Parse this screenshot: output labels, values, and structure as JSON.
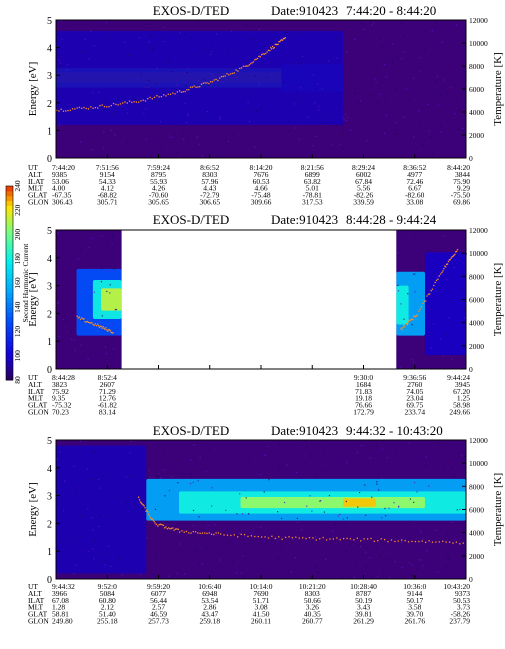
{
  "chart_data": [
    {
      "type": "heatmap",
      "title": "EXOS-D/TED",
      "date_label": "Date:910423",
      "time_range": "7:44:20 - 8:44:20",
      "ylabel": "Energy [eV]",
      "ylim": [
        0,
        5
      ],
      "y_ticks": [
        "0",
        "1",
        "2",
        "3",
        "4",
        "5"
      ],
      "ylabel_right": "Temperature [K]",
      "y2lim": [
        0,
        12000
      ],
      "y2_ticks": [
        "0",
        "2000",
        "4000",
        "6000",
        "8000",
        "10000",
        "12000"
      ],
      "gap": null,
      "bands": [
        {
          "t0": 0.0,
          "t1": 0.62,
          "y0": 2.55,
          "y1": 3.25,
          "intensity": 0.62
        },
        {
          "t0": 0.0,
          "t1": 0.55,
          "y0": 2.72,
          "y1": 3.1,
          "intensity": 0.78
        },
        {
          "t0": 0.55,
          "t1": 0.7,
          "y0": 2.4,
          "y1": 3.4,
          "intensity": 0.25
        },
        {
          "t0": 0.0,
          "t1": 0.7,
          "y0": 1.2,
          "y1": 4.6,
          "intensity": 0.08
        }
      ],
      "temperature_trace": [
        [
          0.0,
          4200
        ],
        [
          0.1,
          4500
        ],
        [
          0.2,
          5000
        ],
        [
          0.3,
          5800
        ],
        [
          0.38,
          6700
        ],
        [
          0.46,
          8000
        ],
        [
          0.52,
          9500
        ],
        [
          0.56,
          10500
        ]
      ],
      "table": {
        "row_labels": [
          "UT",
          "ALT",
          "ILAT",
          "MLT",
          "GLAT",
          "GLON"
        ],
        "columns": [
          [
            "7:44:20",
            "9385",
            "53.06",
            "4.00",
            "-67.35",
            "306.43"
          ],
          [
            "7:51:56",
            "9154",
            "54.33",
            "4.12",
            "-68.82",
            "305.71"
          ],
          [
            "7:59:24",
            "8795",
            "55.93",
            "4.26",
            "-70.60",
            "305.65"
          ],
          [
            "8:6:52",
            "8303",
            "57.96",
            "4.43",
            "-72.79",
            "306.65"
          ],
          [
            "8:14:20",
            "7676",
            "60.53",
            "4.66",
            "-75.48",
            "309.66"
          ],
          [
            "8:21:56",
            "6899",
            "63.82",
            "5.01",
            "-78.81",
            "317.53"
          ],
          [
            "8:29:24",
            "6002",
            "67.84",
            "5.56",
            "-82.26",
            "339.59"
          ],
          [
            "8:36:52",
            "4977",
            "72.46",
            "6.67",
            "-82.60",
            "33.08"
          ],
          [
            "8:44:20",
            "3844",
            "75.90",
            "9.29",
            "-75.50",
            "69.86"
          ]
        ]
      }
    },
    {
      "type": "heatmap",
      "title": "EXOS-D/TED",
      "date_label": "Date:910423",
      "time_range": "8:44:28 - 9:44:24",
      "ylabel": "Energy [eV]",
      "ylim": [
        0,
        5
      ],
      "y_ticks": [
        "0",
        "1",
        "2",
        "3",
        "4",
        "5"
      ],
      "ylabel_right": "Temperature [K]",
      "y2lim": [
        0,
        12000
      ],
      "y2_ticks": [
        "0",
        "2000",
        "4000",
        "6000",
        "8000",
        "10000",
        "12000"
      ],
      "gap": [
        0.16,
        0.83
      ],
      "bands": [
        {
          "t0": 0.05,
          "t1": 0.16,
          "y0": 1.2,
          "y1": 3.6,
          "intensity": 0.3
        },
        {
          "t0": 0.09,
          "t1": 0.16,
          "y0": 1.8,
          "y1": 3.2,
          "intensity": 0.62
        },
        {
          "t0": 0.11,
          "t1": 0.16,
          "y0": 2.1,
          "y1": 2.9,
          "intensity": 0.82
        },
        {
          "t0": 0.83,
          "t1": 0.9,
          "y0": 1.2,
          "y1": 3.5,
          "intensity": 0.45
        },
        {
          "t0": 0.83,
          "t1": 0.86,
          "y0": 1.6,
          "y1": 3.0,
          "intensity": 0.62
        },
        {
          "t0": 0.9,
          "t1": 1.0,
          "y0": 0.5,
          "y1": 4.2,
          "intensity": 0.1
        }
      ],
      "temperature_trace": [
        [
          0.05,
          4500
        ],
        [
          0.1,
          3800
        ],
        [
          0.14,
          3200
        ],
        [
          0.84,
          3500
        ],
        [
          0.88,
          4800
        ],
        [
          0.94,
          8500
        ],
        [
          0.98,
          10500
        ]
      ],
      "table": {
        "row_labels": [
          "UT",
          "ALT",
          "ILAT",
          "MLT",
          "GLAT",
          "GLON"
        ],
        "columns": [
          [
            "8:44:28",
            "3823",
            "75.92",
            "9.35",
            "-75.32",
            "70.23"
          ],
          [
            "8:52:4",
            "2607",
            "71.29",
            "12.76",
            "-61.82",
            "83.14"
          ],
          null,
          null,
          null,
          null,
          [
            "9:30:0",
            "1684",
            "71.83",
            "19.18",
            "76.66",
            "172.79"
          ],
          [
            "9:36:56",
            "2760",
            "74.05",
            "23.04",
            "69.75",
            "233.74"
          ],
          [
            "9:44:24",
            "3945",
            "67.20",
            "1.25",
            "58.98",
            "249.66"
          ]
        ]
      },
      "colorbar": {
        "label": "Second Harmonic Current",
        "ticks": [
          "80",
          "100",
          "120",
          "140",
          "160",
          "180",
          "200",
          "220",
          "240"
        ],
        "range": [
          80,
          240
        ]
      }
    },
    {
      "type": "heatmap",
      "title": "EXOS-D/TED",
      "date_label": "Date:910423",
      "time_range": "9:44:32 - 10:43:20",
      "ylabel": "Energy [eV]",
      "ylim": [
        0,
        5
      ],
      "y_ticks": [
        "0",
        "1",
        "2",
        "3",
        "4",
        "5"
      ],
      "ylabel_right": "Temperature [K]",
      "y2lim": [
        0,
        12000
      ],
      "y2_ticks": [
        "0",
        "2000",
        "4000",
        "6000",
        "8000",
        "10000",
        "12000"
      ],
      "gap": null,
      "bands": [
        {
          "t0": 0.22,
          "t1": 1.0,
          "y0": 2.1,
          "y1": 3.6,
          "intensity": 0.45
        },
        {
          "t0": 0.3,
          "t1": 1.0,
          "y0": 2.35,
          "y1": 3.15,
          "intensity": 0.62
        },
        {
          "t0": 0.45,
          "t1": 0.9,
          "y0": 2.55,
          "y1": 2.95,
          "intensity": 0.78
        },
        {
          "t0": 0.7,
          "t1": 0.78,
          "y0": 2.6,
          "y1": 2.9,
          "intensity": 0.9
        },
        {
          "t0": 0.0,
          "t1": 0.22,
          "y0": 0.2,
          "y1": 4.8,
          "intensity": 0.08
        }
      ],
      "temperature_trace": [
        [
          0.2,
          7000
        ],
        [
          0.24,
          4800
        ],
        [
          0.3,
          4200
        ],
        [
          0.4,
          3900
        ],
        [
          0.55,
          3600
        ],
        [
          0.7,
          3500
        ],
        [
          0.85,
          3350
        ],
        [
          1.0,
          3200
        ]
      ],
      "table": {
        "row_labels": [
          "UT",
          "ALT",
          "ILAT",
          "MLT",
          "GLAT",
          "GLON"
        ],
        "columns": [
          [
            "9:44:32",
            "3966",
            "67.08",
            "1.28",
            "58.81",
            "249.80"
          ],
          [
            "9:52:0",
            "5084",
            "60.80",
            "2.12",
            "51.40",
            "255.18"
          ],
          [
            "9:59:20",
            "6077",
            "56.44",
            "2.57",
            "46.59",
            "257.73"
          ],
          [
            "10:6:40",
            "6948",
            "53.54",
            "2.86",
            "43.47",
            "259.18"
          ],
          [
            "10:14:0",
            "7690",
            "51.71",
            "3.08",
            "41.50",
            "260.11"
          ],
          [
            "10:21:20",
            "8303",
            "50.66",
            "3.26",
            "40.35",
            "260.77"
          ],
          [
            "10:28:40",
            "8787",
            "50.19",
            "3.43",
            "39.81",
            "261.29"
          ],
          [
            "10:36:0",
            "9144",
            "50.17",
            "3.58",
            "39.70",
            "261.76"
          ],
          [
            "10:43:20",
            "9373",
            "50.53",
            "3.73",
            "-58.26",
            "237.79"
          ]
        ]
      }
    }
  ]
}
